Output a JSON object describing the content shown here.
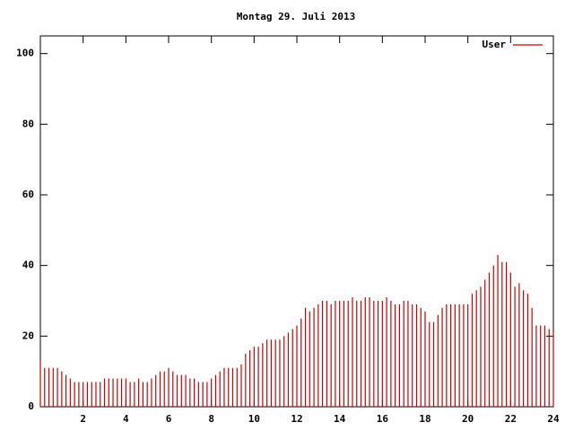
{
  "chart_data": {
    "type": "impulses",
    "title": "Montag 29. Juli 2013",
    "x": [
      0,
      0.2,
      0.4,
      0.6,
      0.8,
      1,
      1.2,
      1.4,
      1.6,
      1.8,
      2,
      2.2,
      2.4,
      2.6,
      2.8,
      3,
      3.2,
      3.4,
      3.6,
      3.8,
      4,
      4.2,
      4.4,
      4.6,
      4.8,
      5,
      5.2,
      5.4,
      5.6,
      5.8,
      6,
      6.2,
      6.4,
      6.6,
      6.8,
      7,
      7.2,
      7.4,
      7.6,
      7.8,
      8,
      8.2,
      8.4,
      8.6,
      8.8,
      9,
      9.2,
      9.4,
      9.6,
      9.8,
      10,
      10.2,
      10.4,
      10.6,
      10.8,
      11,
      11.2,
      11.4,
      11.6,
      11.8,
      12,
      12.2,
      12.4,
      12.6,
      12.8,
      13,
      13.2,
      13.4,
      13.6,
      13.8,
      14,
      14.2,
      14.4,
      14.6,
      14.8,
      15,
      15.2,
      15.4,
      15.6,
      15.8,
      16,
      16.2,
      16.4,
      16.6,
      16.8,
      17,
      17.2,
      17.4,
      17.6,
      17.8,
      18,
      18.2,
      18.4,
      18.6,
      18.8,
      19,
      19.2,
      19.4,
      19.6,
      19.8,
      20,
      20.2,
      20.4,
      20.6,
      20.8,
      21,
      21.2,
      21.4,
      21.6,
      21.8,
      22,
      22.2,
      22.4,
      22.6,
      22.8,
      23,
      23.2,
      23.4,
      23.6,
      23.8,
      24
    ],
    "series": [
      {
        "name": "User",
        "color": "#cc0000",
        "values": [
          13,
          11,
          11,
          11,
          11,
          10,
          9,
          8,
          7,
          7,
          7,
          7,
          7,
          7,
          7,
          8,
          8,
          8,
          8,
          8,
          8,
          7,
          7,
          8,
          7,
          7,
          8,
          9,
          10,
          10,
          11,
          10,
          9,
          9,
          9,
          8,
          8,
          7,
          7,
          7,
          8,
          9,
          10,
          11,
          11,
          11,
          11,
          12,
          15,
          16,
          17,
          17,
          18,
          19,
          19,
          19,
          19,
          20,
          21,
          22,
          23,
          25,
          28,
          27,
          28,
          29,
          30,
          30,
          29,
          30,
          30,
          30,
          30,
          31,
          30,
          30,
          31,
          31,
          30,
          30,
          30,
          31,
          30,
          29,
          29,
          30,
          30,
          29,
          29,
          28,
          27,
          24,
          24,
          26,
          28,
          29,
          29,
          29,
          29,
          29,
          29,
          32,
          33,
          34,
          36,
          38,
          40,
          43,
          41,
          41,
          38,
          34,
          35,
          33,
          32,
          28,
          23,
          23,
          23,
          22,
          21
        ]
      }
    ],
    "xlim": [
      0,
      24
    ],
    "xticks": [
      2,
      4,
      6,
      8,
      10,
      12,
      14,
      16,
      18,
      20,
      22,
      24
    ],
    "ylim": [
      0,
      105
    ],
    "yticks": [
      0,
      20,
      40,
      60,
      80,
      100
    ],
    "legend": "top-right"
  }
}
